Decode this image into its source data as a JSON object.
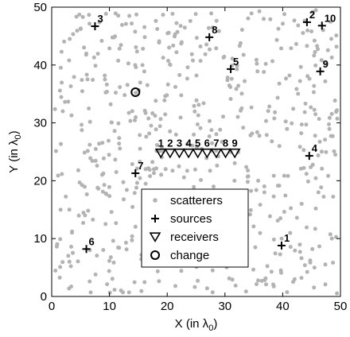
{
  "chart_data": {
    "type": "scatter",
    "xlabel": "X (in λ",
    "xlabel_sub": "0",
    "xlabel_tail": ")",
    "ylabel": "Y (in λ",
    "ylabel_sub": "0",
    "ylabel_tail": ")",
    "xlim": [
      0,
      50
    ],
    "ylim": [
      0,
      50
    ],
    "xticks": [
      0,
      10,
      20,
      30,
      40,
      50
    ],
    "yticks": [
      0,
      10,
      20,
      30,
      40,
      50
    ],
    "grid": false,
    "legend_position": "bottom-center",
    "colors": {
      "scatterers": "#b3b3b3",
      "marks": "#000000"
    },
    "series": [
      {
        "name": "scatterers",
        "marker": "dot",
        "note_count": "≈600 points uniformly distributed over the 50×50 region (positions estimated)"
      },
      {
        "name": "sources",
        "marker": "plus",
        "points": [
          {
            "label": "1",
            "x": 39.8,
            "y": 8.8
          },
          {
            "label": "2",
            "x": 44.2,
            "y": 47.4
          },
          {
            "label": "3",
            "x": 7.5,
            "y": 46.7
          },
          {
            "label": "4",
            "x": 44.6,
            "y": 24.3
          },
          {
            "label": "5",
            "x": 31.0,
            "y": 39.3
          },
          {
            "label": "6",
            "x": 6.0,
            "y": 8.2
          },
          {
            "label": "7",
            "x": 14.5,
            "y": 21.3
          },
          {
            "label": "8",
            "x": 27.3,
            "y": 44.8
          },
          {
            "label": "9",
            "x": 46.5,
            "y": 38.9
          },
          {
            "label": "10",
            "x": 46.8,
            "y": 46.8
          }
        ]
      },
      {
        "name": "receivers",
        "marker": "triangle-down",
        "points": [
          {
            "label": "1",
            "x": 18.9,
            "y": 24.8
          },
          {
            "label": "2",
            "x": 20.5,
            "y": 24.8
          },
          {
            "label": "3",
            "x": 22.1,
            "y": 24.8
          },
          {
            "label": "4",
            "x": 23.7,
            "y": 24.8
          },
          {
            "label": "5",
            "x": 25.3,
            "y": 24.8
          },
          {
            "label": "6",
            "x": 26.9,
            "y": 24.8
          },
          {
            "label": "7",
            "x": 28.5,
            "y": 24.8
          },
          {
            "label": "8",
            "x": 30.1,
            "y": 24.8
          },
          {
            "label": "9",
            "x": 31.7,
            "y": 24.8
          }
        ]
      },
      {
        "name": "change",
        "marker": "circle",
        "points": [
          {
            "x": 14.5,
            "y": 35.3
          }
        ]
      }
    ],
    "legend": [
      {
        "label": "scatterers",
        "marker": "dot"
      },
      {
        "label": "sources",
        "marker": "plus"
      },
      {
        "label": "receivers",
        "marker": "triangle-down"
      },
      {
        "label": "change",
        "marker": "circle"
      }
    ]
  }
}
